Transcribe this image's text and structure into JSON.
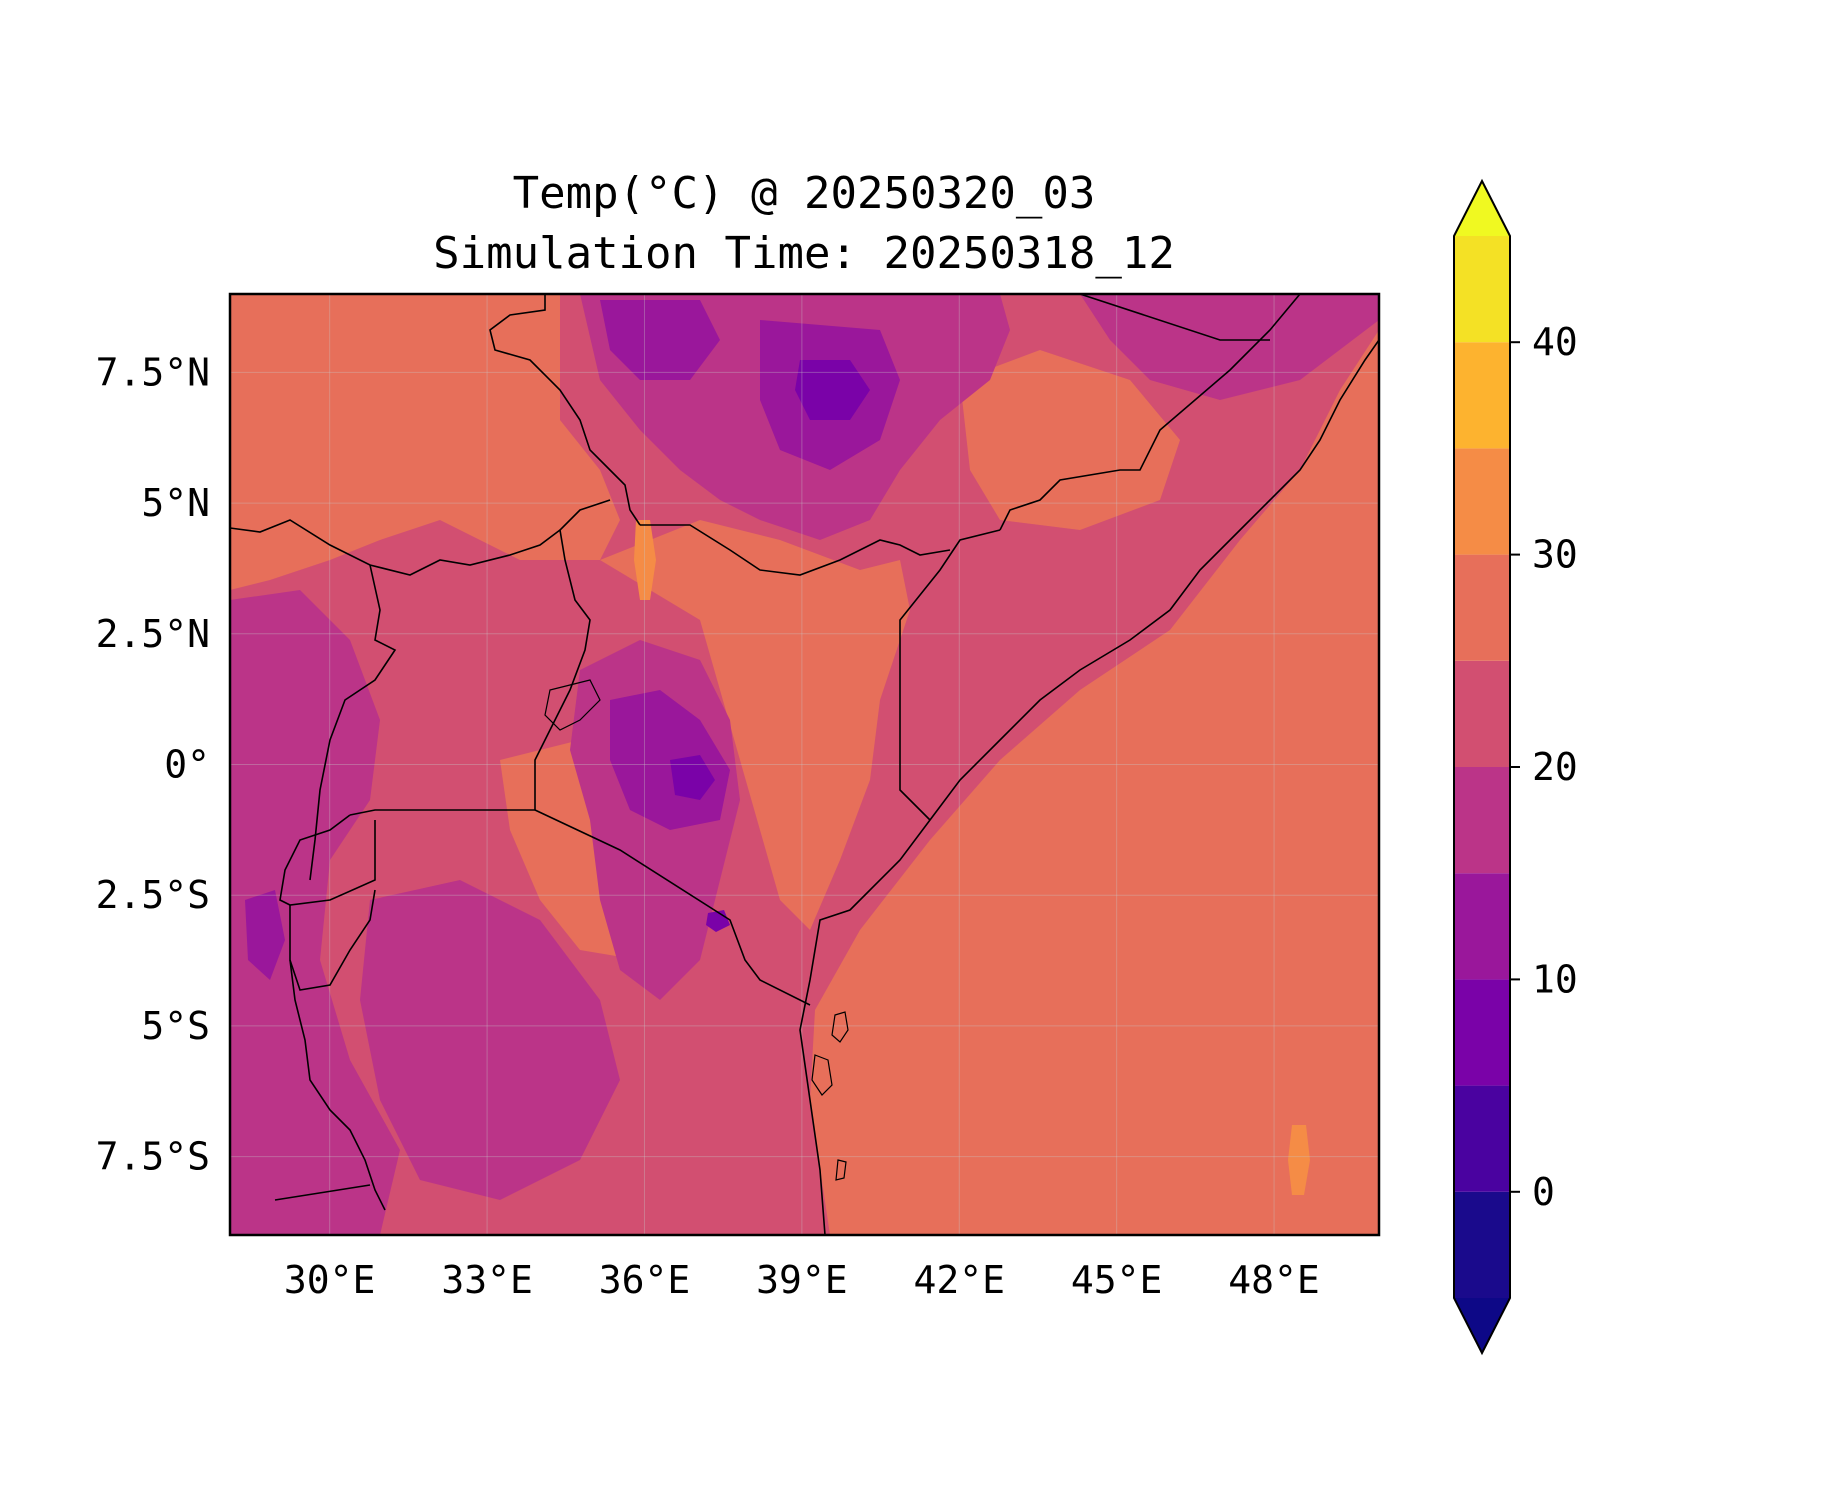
{
  "title": {
    "line1": "Temp(°C) @ 20250320_03",
    "line2": "Simulation Time: 20250318_12"
  },
  "map": {
    "variable": "Temp(°C)",
    "region": "East Africa",
    "projection": "PlateCarree",
    "lon_range": [
      28.1,
      50.0
    ],
    "lat_range": [
      -9.0,
      9.0
    ],
    "x_ticks": [
      {
        "value": 30,
        "label": "30°E"
      },
      {
        "value": 33,
        "label": "33°E"
      },
      {
        "value": 36,
        "label": "36°E"
      },
      {
        "value": 39,
        "label": "39°E"
      },
      {
        "value": 42,
        "label": "42°E"
      },
      {
        "value": 45,
        "label": "45°E"
      },
      {
        "value": 48,
        "label": "48°E"
      }
    ],
    "y_ticks": [
      {
        "value": 7.5,
        "label": "7.5°N"
      },
      {
        "value": 5,
        "label": "5°N"
      },
      {
        "value": 2.5,
        "label": "2.5°N"
      },
      {
        "value": 0,
        "label": "0°"
      },
      {
        "value": -2.5,
        "label": "2.5°S"
      },
      {
        "value": -5,
        "label": "5°S"
      },
      {
        "value": -7.5,
        "label": "7.5°S"
      }
    ],
    "gridlines": true,
    "ocean_value_range": [
      25,
      30
    ]
  },
  "colorbar": {
    "colormap": "plasma",
    "levels": [
      -5,
      0,
      5,
      10,
      15,
      20,
      25,
      30,
      35,
      40,
      45
    ],
    "extend": "both",
    "colors": [
      "#1a0a8c",
      "#4a02a0",
      "#7a02a8",
      "#9a179b",
      "#bb3488",
      "#d24f71",
      "#e76f5a",
      "#f58c46",
      "#fdb32f",
      "#f4e125"
    ],
    "under_color": "#0d0887",
    "over_color": "#f0f921",
    "tick_labels": [
      {
        "value": 0,
        "label": "0"
      },
      {
        "value": 10,
        "label": "10"
      },
      {
        "value": 20,
        "label": "20"
      },
      {
        "value": 30,
        "label": "30"
      },
      {
        "value": 40,
        "label": "40"
      }
    ]
  }
}
